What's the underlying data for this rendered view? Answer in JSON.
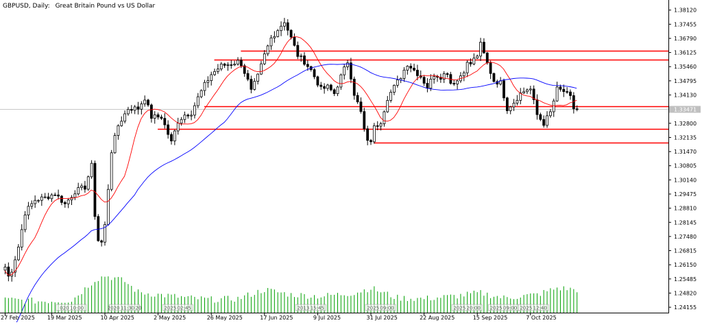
{
  "header": {
    "symbol": "GBPUSD, Daily:",
    "description": "Great Britain Pound vs US Dollar"
  },
  "colors": {
    "background": "#ffffff",
    "axis": "#000000",
    "grid_current_price": "#c8c8c8",
    "bull_candle": "#ffffff",
    "bear_candle": "#000000",
    "ma_fast": "#ff0000",
    "ma_slow": "#0000ff",
    "level_line": "#ff0000",
    "volume": "#00a000",
    "price_tag_bg": "#c0c0c0",
    "price_tag_text": "#ffffff"
  },
  "chart_data": {
    "type": "candlestick",
    "y_axis": {
      "ylim": [
        1.239,
        1.384
      ],
      "ticks": [
        "1.38120",
        "1.37455",
        "1.36790",
        "1.36125",
        "1.35460",
        "1.34795",
        "1.34130",
        "1.33465",
        "1.32800",
        "1.32135",
        "1.31470",
        "1.30805",
        "1.30140",
        "1.29475",
        "1.28810",
        "1.28145",
        "1.27480",
        "1.26815",
        "1.26150",
        "1.25485",
        "1.24820",
        "1.24155"
      ],
      "current_price": "1.33471",
      "current_value": 1.33471
    },
    "x_axis": {
      "ticks": [
        {
          "label": "27 Feb 2025",
          "bar": 0
        },
        {
          "label": "19 Mar 2025",
          "bar": 14
        },
        {
          "label": "10 Apr 2025",
          "bar": 30
        },
        {
          "label": "2 May 2025",
          "bar": 46
        },
        {
          "label": "26 May 2025",
          "bar": 62
        },
        {
          "label": "17 Jun 2025",
          "bar": 78
        },
        {
          "label": "9 Jul 2025",
          "bar": 94
        },
        {
          "label": "31 Jul 2025",
          "bar": 110
        },
        {
          "label": "22 Aug 2025",
          "bar": 126
        },
        {
          "label": "15 Sep 2025",
          "bar": 142
        },
        {
          "label": "7 Oct 2025",
          "bar": 158
        }
      ]
    },
    "horizontal_levels": [
      {
        "price": 1.362,
        "start_bar": 71
      },
      {
        "price": 1.358,
        "start_bar": 63
      },
      {
        "price": 1.3359,
        "start_bar": 60
      },
      {
        "price": 1.3255,
        "start_bar": 46
      },
      {
        "price": 1.3188,
        "start_bar": 111
      }
    ],
    "close_anchors": [
      [
        0,
        1.2605
      ],
      [
        1,
        1.256
      ],
      [
        2,
        1.259
      ],
      [
        4,
        1.27
      ],
      [
        6,
        1.286
      ],
      [
        9,
        1.292
      ],
      [
        12,
        1.293
      ],
      [
        15,
        1.295
      ],
      [
        18,
        1.29
      ],
      [
        21,
        1.296
      ],
      [
        24,
        1.298
      ],
      [
        26,
        1.308
      ],
      [
        27,
        1.285
      ],
      [
        28,
        1.273
      ],
      [
        29,
        1.272
      ],
      [
        30,
        1.28
      ],
      [
        32,
        1.315
      ],
      [
        34,
        1.327
      ],
      [
        37,
        1.335
      ],
      [
        40,
        1.335
      ],
      [
        42,
        1.34
      ],
      [
        44,
        1.331
      ],
      [
        47,
        1.331
      ],
      [
        50,
        1.319
      ],
      [
        52,
        1.329
      ],
      [
        54,
        1.332
      ],
      [
        56,
        1.333
      ],
      [
        58,
        1.34
      ],
      [
        60,
        1.346
      ],
      [
        62,
        1.351
      ],
      [
        65,
        1.355
      ],
      [
        68,
        1.356
      ],
      [
        70,
        1.357
      ],
      [
        71,
        1.356
      ],
      [
        73,
        1.348
      ],
      [
        74,
        1.343
      ],
      [
        76,
        1.35
      ],
      [
        78,
        1.36
      ],
      [
        80,
        1.368
      ],
      [
        82,
        1.372
      ],
      [
        84,
        1.376
      ],
      [
        86,
        1.368
      ],
      [
        88,
        1.36
      ],
      [
        90,
        1.357
      ],
      [
        92,
        1.353
      ],
      [
        95,
        1.344
      ],
      [
        97,
        1.345
      ],
      [
        99,
        1.342
      ],
      [
        101,
        1.35
      ],
      [
        103,
        1.357
      ],
      [
        104,
        1.35
      ],
      [
        105,
        1.342
      ],
      [
        107,
        1.333
      ],
      [
        108,
        1.325
      ],
      [
        109,
        1.319
      ],
      [
        110,
        1.32
      ],
      [
        111,
        1.326
      ],
      [
        113,
        1.329
      ],
      [
        115,
        1.34
      ],
      [
        117,
        1.345
      ],
      [
        119,
        1.35
      ],
      [
        121,
        1.356
      ],
      [
        123,
        1.353
      ],
      [
        125,
        1.35
      ],
      [
        127,
        1.345
      ],
      [
        129,
        1.351
      ],
      [
        131,
        1.35
      ],
      [
        133,
        1.352
      ],
      [
        134,
        1.347
      ],
      [
        136,
        1.348
      ],
      [
        138,
        1.353
      ],
      [
        139,
        1.356
      ],
      [
        140,
        1.356
      ],
      [
        142,
        1.36
      ],
      [
        143,
        1.365
      ],
      [
        145,
        1.356
      ],
      [
        147,
        1.348
      ],
      [
        149,
        1.347
      ],
      [
        151,
        1.335
      ],
      [
        153,
        1.338
      ],
      [
        155,
        1.342
      ],
      [
        157,
        1.344
      ],
      [
        158,
        1.344
      ],
      [
        160,
        1.332
      ],
      [
        162,
        1.328
      ],
      [
        164,
        1.333
      ],
      [
        166,
        1.344
      ],
      [
        168,
        1.343
      ],
      [
        170,
        1.34
      ],
      [
        171,
        1.335
      ],
      [
        172,
        1.3347
      ]
    ],
    "series": [
      {
        "role": "ma-fast",
        "color": "#ff0000",
        "period": 10
      },
      {
        "role": "ma-slow",
        "color": "#0000ff",
        "period": 40
      }
    ],
    "volume_anchors": [
      [
        0,
        0.16
      ],
      [
        10,
        0.14
      ],
      [
        20,
        0.15
      ],
      [
        27,
        0.4
      ],
      [
        30,
        0.45
      ],
      [
        33,
        0.42
      ],
      [
        36,
        0.38
      ],
      [
        40,
        0.25
      ],
      [
        46,
        0.22
      ],
      [
        55,
        0.18
      ],
      [
        62,
        0.16
      ],
      [
        70,
        0.17
      ],
      [
        78,
        0.28
      ],
      [
        86,
        0.22
      ],
      [
        95,
        0.2
      ],
      [
        105,
        0.24
      ],
      [
        110,
        0.3
      ],
      [
        118,
        0.18
      ],
      [
        126,
        0.17
      ],
      [
        135,
        0.2
      ],
      [
        143,
        0.24
      ],
      [
        150,
        0.18
      ],
      [
        160,
        0.22
      ],
      [
        166,
        0.3
      ],
      [
        172,
        0.28
      ]
    ],
    "volume_tags": [
      {
        "text": " 020 10:00",
        "bar": 20
      },
      {
        "text": "2020 11:30 20",
        "bar": 36
      },
      {
        "text": "2025 02:45",
        "bar": 52
      },
      {
        "text": "2013 15:45",
        "bar": 92
      },
      {
        "text": "2025 09:00",
        "bar": 113
      },
      {
        "text": "2025 20:00",
        "bar": 139
      },
      {
        "text": "2025 09:00",
        "bar": 150
      },
      {
        "text": "2025 12:40",
        "bar": 159
      }
    ]
  }
}
